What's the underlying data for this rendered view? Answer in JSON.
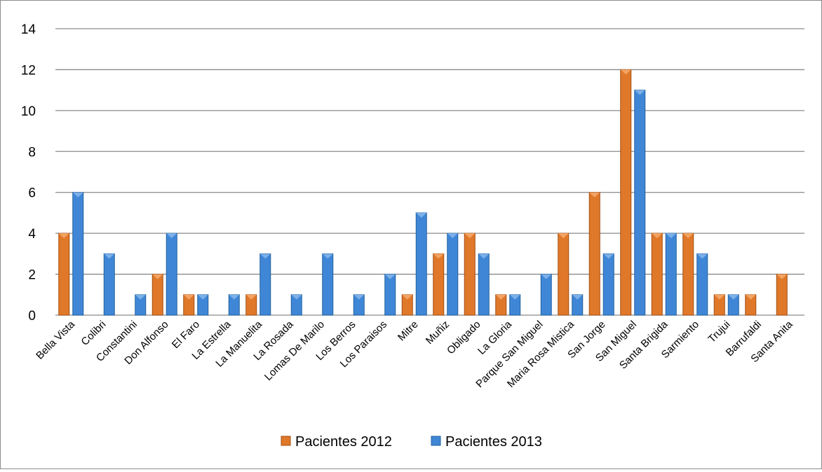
{
  "chart_data": {
    "type": "bar",
    "categories": [
      "Bella Vista",
      "Colibri",
      "Constantini",
      "Don Alfonso",
      "El Faro",
      "La Estrella",
      "La Manuelita",
      "La Rosada",
      "Lomas De Marilo",
      "Los Berros",
      "Los Paraisos",
      "Mitre",
      "Muñiz",
      "Obligado",
      "La Gloria",
      "Parque San Miguel",
      "Maria Rosa Mistica",
      "San Jorge",
      "San Miguel",
      "Santa Brigida",
      "Sarmiento",
      "Trujui",
      "Barrufaldi",
      "Santa Anita"
    ],
    "series": [
      {
        "name": "Pacientes 2012",
        "color": "#e0782a",
        "values": [
          4,
          0,
          0,
          2,
          1,
          0,
          1,
          0,
          0,
          0,
          0,
          1,
          3,
          4,
          1,
          0,
          4,
          6,
          12,
          4,
          4,
          1,
          1,
          2
        ]
      },
      {
        "name": "Pacientes 2013",
        "color": "#3f87d6",
        "values": [
          6,
          3,
          1,
          4,
          1,
          1,
          3,
          1,
          3,
          1,
          2,
          5,
          4,
          3,
          1,
          2,
          1,
          3,
          11,
          4,
          3,
          1,
          0,
          0
        ]
      }
    ],
    "ylim": [
      0,
      14
    ],
    "yticks": [
      0,
      2,
      4,
      6,
      8,
      10,
      12,
      14
    ],
    "grid": true,
    "legend": "bottom",
    "title": "",
    "xlabel": "",
    "ylabel": ""
  }
}
